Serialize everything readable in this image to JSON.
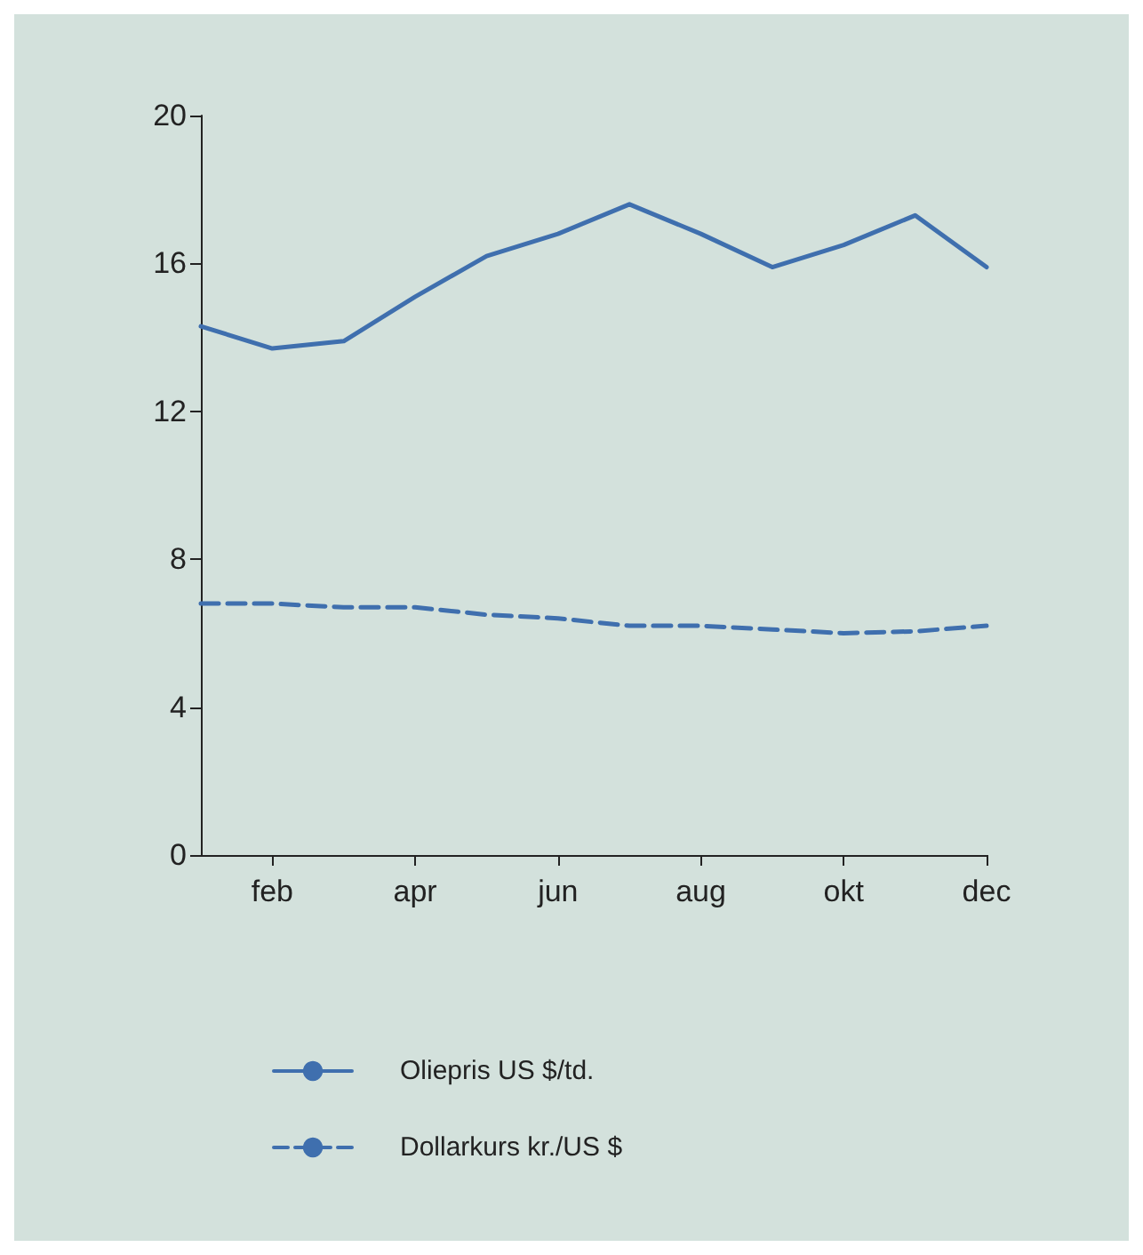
{
  "chart_data": {
    "type": "line",
    "categories": [
      null,
      "feb",
      null,
      "apr",
      null,
      "jun",
      null,
      "aug",
      null,
      "okt",
      null,
      "dec"
    ],
    "series": [
      {
        "name": "Oliepris US $/td.",
        "color": "#3f6fae",
        "line_style": "solid",
        "values": [
          14.3,
          13.7,
          13.9,
          15.1,
          16.2,
          16.8,
          17.6,
          16.8,
          15.9,
          16.5,
          17.3,
          15.9
        ]
      },
      {
        "name": "Dollarkurs kr./US $",
        "color": "#3f6fae",
        "line_style": "dashed",
        "values": [
          6.8,
          6.8,
          6.7,
          6.7,
          6.5,
          6.4,
          6.2,
          6.2,
          6.1,
          6.0,
          6.05,
          6.2
        ]
      }
    ],
    "ylim": [
      0,
      20
    ],
    "yticks": [
      0,
      4,
      8,
      12,
      16,
      20
    ],
    "grid": false,
    "legend": "bottom",
    "marker": "none"
  }
}
